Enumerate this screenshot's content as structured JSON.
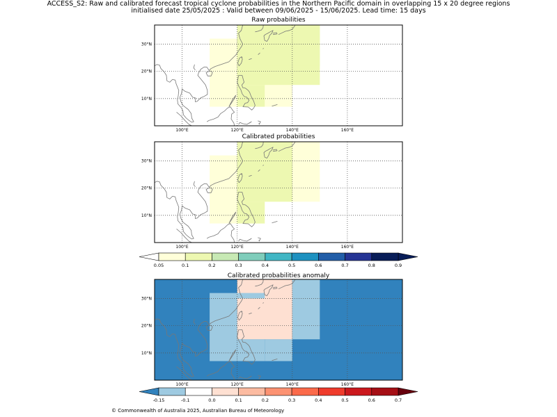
{
  "figure": {
    "title_line1": "ACCESS_S2: Raw and calibrated forecast tropical cyclone probabilities in the Northern Pacific domain in overlapping 15 x 20 degree regions",
    "title_line2": "initialised date 25/05/2025 :  Valid between 09/06/2025 - 15/06/2025. Lead time: 15 days",
    "copyright": "© Commonwealth of Australia 2025, Australian Bureau of Meteorology"
  },
  "colors": {
    "prob": [
      "#ffffd9",
      "#edf8b1",
      "#c7e9b4",
      "#7fcdbb",
      "#41b6c4",
      "#1d91c0",
      "#225ea8",
      "#253494",
      "#081d58"
    ],
    "prob_under": "#ffffff",
    "anom": [
      "#9ecae1",
      "#ffffff",
      "#fee0d2",
      "#fcbba1",
      "#fc9272",
      "#fb6a4a",
      "#ef3b2c",
      "#cb181d",
      "#a50f15"
    ],
    "anom_under": "#3182bd",
    "anom_over": "#67000d",
    "coast": "#777777"
  },
  "chart_data": [
    {
      "type": "heatmap",
      "title": "Raw probabilities",
      "xlim": [
        90,
        180
      ],
      "ylim": [
        0,
        37
      ],
      "xticks": [
        "100°E",
        "120°E",
        "140°E",
        "160°E"
      ],
      "yticks": [
        "10°N",
        "20°N",
        "30°N"
      ],
      "grid": true,
      "cells": [
        {
          "lon": [
            110,
            140
          ],
          "lat": [
            7,
            32
          ],
          "value": 0.07
        },
        {
          "lon": [
            120,
            150
          ],
          "lat": [
            15,
            37
          ],
          "value": 0.12
        },
        {
          "lon": [
            120,
            130
          ],
          "lat": [
            7,
            15
          ],
          "value": 0.12
        },
        {
          "lon": [
            130,
            150
          ],
          "lat": [
            22,
            37
          ],
          "value": 0.12
        }
      ]
    },
    {
      "type": "heatmap",
      "title": "Calibrated probabilities",
      "xlim": [
        90,
        180
      ],
      "ylim": [
        0,
        37
      ],
      "xticks": [
        "100°E",
        "120°E",
        "140°E",
        "160°E"
      ],
      "yticks": [
        "10°N",
        "20°N",
        "30°N"
      ],
      "grid": true,
      "cells": [
        {
          "lon": [
            110,
            130
          ],
          "lat": [
            7,
            32
          ],
          "value": 0.07
        },
        {
          "lon": [
            130,
            150
          ],
          "lat": [
            15,
            37
          ],
          "value": 0.07
        },
        {
          "lon": [
            120,
            140
          ],
          "lat": [
            15,
            37
          ],
          "value": 0.12
        },
        {
          "lon": [
            120,
            130
          ],
          "lat": [
            7,
            15
          ],
          "value": 0.12
        }
      ],
      "colorbar": {
        "ticks": [
          "0.05",
          "0.1",
          "0.2",
          "0.3",
          "0.4",
          "0.5",
          "0.6",
          "0.7",
          "0.8",
          "0.9"
        ]
      }
    },
    {
      "type": "heatmap",
      "title": "Calibrated probabilities anomaly",
      "xlim": [
        90,
        180
      ],
      "ylim": [
        0,
        37
      ],
      "xticks": [
        "100°E",
        "120°E",
        "140°E",
        "160°E"
      ],
      "yticks": [
        "10°N",
        "20°N",
        "30°N"
      ],
      "grid": true,
      "background_value": -0.2,
      "cells": [
        {
          "lon": [
            110,
            120
          ],
          "lat": [
            7,
            32
          ],
          "value": -0.12
        },
        {
          "lon": [
            120,
            130
          ],
          "lat": [
            7,
            15
          ],
          "value": -0.12
        },
        {
          "lon": [
            130,
            140
          ],
          "lat": [
            7,
            15
          ],
          "value": -0.12
        },
        {
          "lon": [
            140,
            150
          ],
          "lat": [
            15,
            37
          ],
          "value": -0.12
        },
        {
          "lon": [
            120,
            140
          ],
          "lat": [
            15,
            37
          ],
          "value": 0.0
        },
        {
          "lon": [
            120,
            130
          ],
          "lat": [
            30,
            32
          ],
          "value": -0.12
        }
      ],
      "colorbar": {
        "ticks": [
          "-0.15",
          "-0.1",
          "0.0",
          "0.1",
          "0.2",
          "0.3",
          "0.4",
          "0.5",
          "0.6",
          "0.7"
        ]
      }
    }
  ]
}
